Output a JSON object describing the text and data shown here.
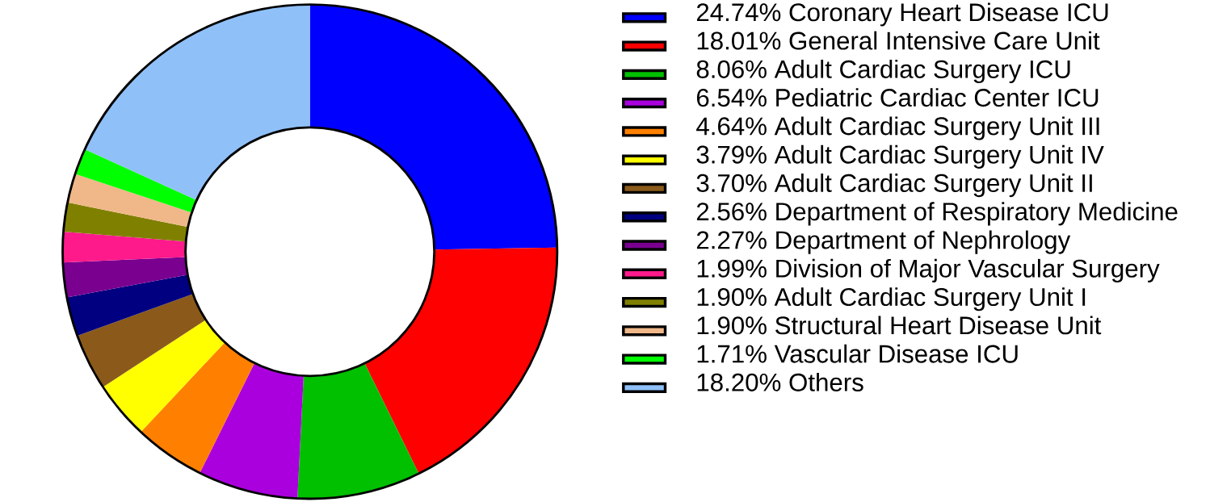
{
  "chart_data": {
    "type": "donut",
    "categories": [
      "24.74%  Coronary Heart Disease ICU",
      "18.01%  General Intensive Care Unit",
      "8.06%  Adult Cardiac Surgery ICU",
      "6.54%  Pediatric Cardiac Center ICU",
      "4.64%  Adult Cardiac Surgery Unit III",
      "3.79%  Adult Cardiac Surgery Unit IV",
      "3.70%  Adult Cardiac Surgery Unit II",
      "2.56%  Department of Respiratory Medicine",
      "2.27%  Department of Nephrology",
      "1.99%  Division of Major Vascular Surgery",
      "1.90%  Adult Cardiac Surgery Unit I",
      "1.90%  Structural Heart Disease Unit",
      "1.71%  Vascular Disease ICU",
      "18.20%  Others"
    ],
    "values": [
      24.74,
      18.01,
      8.06,
      6.54,
      4.64,
      3.79,
      3.7,
      2.56,
      2.27,
      1.99,
      1.9,
      1.9,
      1.71,
      18.2
    ],
    "colors": [
      "#0000ff",
      "#ff0000",
      "#00c000",
      "#aa00dd",
      "#ff8000",
      "#ffff00",
      "#8b5a1a",
      "#000080",
      "#7a0090",
      "#ff1a8c",
      "#808000",
      "#f0b888",
      "#00ff00",
      "#90c0f8"
    ],
    "legend": "right"
  }
}
